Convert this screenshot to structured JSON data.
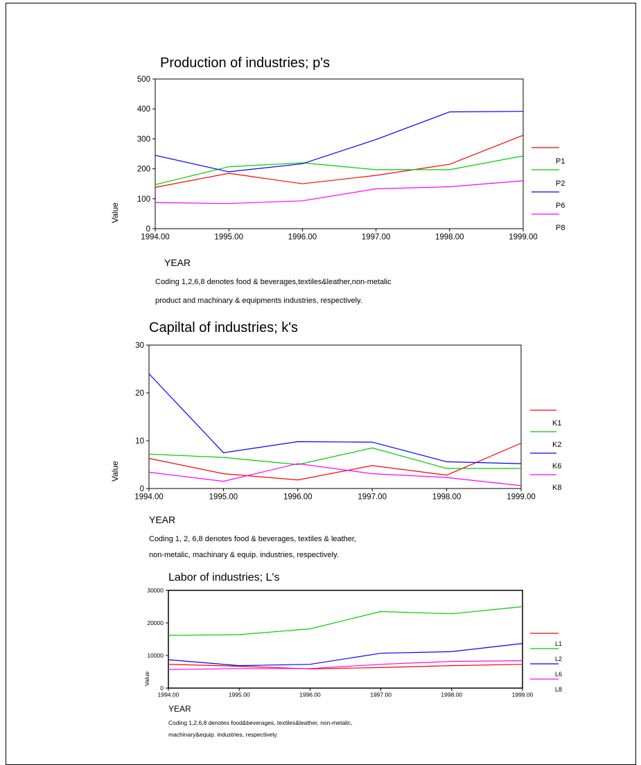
{
  "charts": [
    {
      "title": "Production of industries; p's",
      "xlabel": "YEAR",
      "ylabel": "Value",
      "note_lines": [
        "Coding 1,2,6,8 denotes food & beverages,textiles&leather,non-metalic",
        "product and machinary & equipments industries, respectively."
      ]
    },
    {
      "title": "Capiltal of industries; k's",
      "xlabel": "YEAR",
      "ylabel": "Value",
      "note_lines": [
        "Coding 1, 2, 6,8 denotes food & beverages, textiles & leather,",
        "non-metalic, machinary & equip. industries, respectively."
      ]
    },
    {
      "title": "Labor of industries; L's",
      "xlabel": "YEAR",
      "ylabel": "Value",
      "note_lines": [
        "Coding 1,2,6,8 denotes food&beverages, textiles&leather, non-metalic,",
        "machinary&equip. industries, respectively."
      ]
    }
  ],
  "chart_data": [
    {
      "type": "line",
      "title": "Production of industries; p's",
      "xlabel": "YEAR",
      "ylabel": "Value",
      "x": [
        1994,
        1995,
        1996,
        1997,
        1998,
        1999
      ],
      "x_tick_labels": [
        "1994.00",
        "1995.00",
        "1996.00",
        "1997.00",
        "1998.00",
        "1999.00"
      ],
      "ylim": [
        0,
        500
      ],
      "y_ticks": [
        0,
        100,
        200,
        300,
        400,
        500
      ],
      "y_tick_labels": [
        "0",
        "100",
        "200",
        "300",
        "400",
        "500"
      ],
      "grid": false,
      "legend_position": "right",
      "legend_labels": [
        "P1",
        "P2",
        "P6",
        "P8"
      ],
      "series": [
        {
          "color": "#ff0000",
          "values": [
            138,
            185,
            150,
            178,
            215,
            312
          ]
        },
        {
          "color": "#00cc00",
          "values": [
            147,
            207,
            220,
            197,
            197,
            243
          ]
        },
        {
          "color": "#0000ff",
          "values": [
            245,
            190,
            217,
            298,
            390,
            392
          ]
        },
        {
          "color": "#ff00ff",
          "values": [
            87,
            84,
            93,
            133,
            140,
            160
          ]
        }
      ]
    },
    {
      "type": "line",
      "title": "Capiltal of industries; k's",
      "xlabel": "YEAR",
      "ylabel": "Value",
      "x": [
        1994,
        1995,
        1996,
        1997,
        1998,
        1999
      ],
      "x_tick_labels": [
        "1994.00",
        "1995.00",
        "1996.00",
        "1997.00",
        "1998.00",
        "1999.00"
      ],
      "ylim": [
        0,
        30
      ],
      "y_ticks": [
        0,
        10,
        20,
        30
      ],
      "y_tick_labels": [
        "0",
        "10",
        "20",
        "30"
      ],
      "grid": false,
      "legend_position": "right",
      "legend_labels": [
        "K1",
        "K2",
        "K6",
        "K8"
      ],
      "series": [
        {
          "color": "#ff0000",
          "values": [
            6.3,
            3.1,
            1.8,
            4.8,
            2.8,
            9.5
          ]
        },
        {
          "color": "#00cc00",
          "values": [
            7.2,
            6.5,
            5.0,
            8.5,
            4.2,
            4.2
          ]
        },
        {
          "color": "#0000ff",
          "values": [
            24.0,
            7.5,
            9.8,
            9.7,
            5.6,
            5.2
          ]
        },
        {
          "color": "#ff00ff",
          "values": [
            3.4,
            1.5,
            5.2,
            3.1,
            2.3,
            0.6
          ]
        }
      ]
    },
    {
      "type": "line",
      "title": "Labor of industries; L's",
      "xlabel": "YEAR",
      "ylabel": "Value",
      "x": [
        1994,
        1995,
        1996,
        1997,
        1998,
        1999
      ],
      "x_tick_labels": [
        "1994.00",
        "1995.00",
        "1996.00",
        "1997.00",
        "1998.00",
        "1999.00"
      ],
      "ylim": [
        0,
        30000
      ],
      "y_ticks": [
        0,
        10000,
        20000,
        30000
      ],
      "y_tick_labels": [
        "0",
        "10000",
        "20000",
        "30000"
      ],
      "grid": false,
      "legend_position": "right",
      "legend_labels": [
        "L1",
        "L2",
        "L6",
        "L8"
      ],
      "series": [
        {
          "color": "#ff0000",
          "values": [
            7300,
            6700,
            5900,
            6300,
            6900,
            7300
          ]
        },
        {
          "color": "#00cc00",
          "values": [
            16200,
            16400,
            18200,
            23500,
            22800,
            25000
          ]
        },
        {
          "color": "#0000ff",
          "values": [
            8700,
            6900,
            7300,
            10700,
            11200,
            13700
          ]
        },
        {
          "color": "#ff00ff",
          "values": [
            5700,
            6000,
            6000,
            7300,
            8200,
            8400
          ]
        }
      ]
    }
  ]
}
